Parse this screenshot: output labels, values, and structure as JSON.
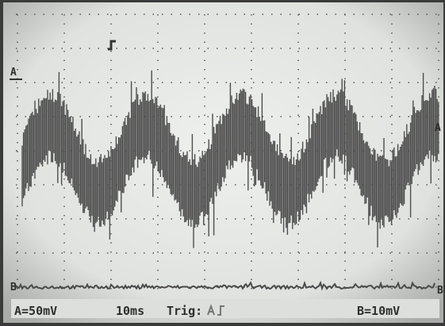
{
  "markers": {
    "left_a": "A",
    "left_b": "B",
    "right_a": "A",
    "right_b": "B"
  },
  "status": {
    "channel_a": "A=50mV",
    "timebase": "10ms",
    "trigger": "Trig:",
    "channel_b": "B=10mV"
  }
}
